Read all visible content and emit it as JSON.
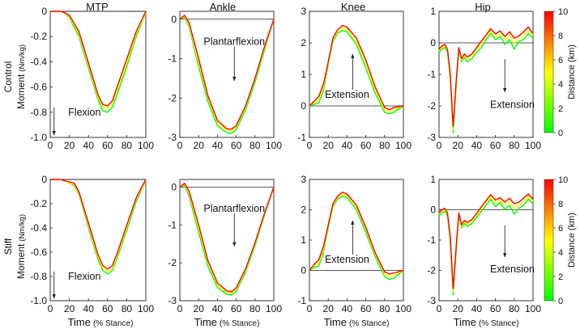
{
  "figure": {
    "column_titles": [
      "MTP",
      "Ankle",
      "Knee",
      "Hip"
    ],
    "row_labels": [
      {
        "condition": "Control",
        "quantity": "Moment",
        "unit": "(Nm/kg)"
      },
      {
        "condition": "Stiff",
        "quantity": "Moment",
        "unit": "(Nm/kg)"
      }
    ],
    "x_axis_label": {
      "main": "Time",
      "unit": "(% Stance)"
    },
    "annotations": {
      "mtp": "Flexion",
      "ankle": "Plantarflexion",
      "knee": "Extension",
      "hip": "Extension"
    },
    "colorbar": {
      "label": "Distance (km)",
      "ticks": [
        "10",
        "8",
        "6",
        "4",
        "2",
        "0"
      ],
      "range": [
        0,
        10
      ],
      "colors": {
        "low": "#00ff00",
        "mid": "#ffff00",
        "high": "#ff0000"
      }
    }
  },
  "chart_data": [
    {
      "type": "line",
      "row": 0,
      "col": 0,
      "joint": "MTP",
      "condition": "Control",
      "title": "MTP",
      "xlabel": "",
      "ylabel": "Control Moment (Nm/kg)",
      "xlim": [
        0,
        100
      ],
      "ylim": [
        -1.0,
        0
      ],
      "xticks": [
        "0",
        "20",
        "40",
        "60",
        "80",
        "100"
      ],
      "yticks": [
        "0",
        "-0.2",
        "-0.4",
        "-0.6",
        "-0.8",
        "-1.0"
      ],
      "annotation": "Flexion",
      "x": [
        0,
        10,
        15,
        20,
        30,
        40,
        50,
        55,
        60,
        65,
        70,
        80,
        90,
        100
      ],
      "series": [
        {
          "name": "0 km",
          "distance_km": 0,
          "values": [
            0,
            0,
            -0.01,
            -0.05,
            -0.2,
            -0.45,
            -0.7,
            -0.79,
            -0.8,
            -0.76,
            -0.66,
            -0.44,
            -0.2,
            -0.01
          ]
        },
        {
          "name": "5 km",
          "distance_km": 5,
          "values": [
            0,
            0,
            -0.01,
            -0.04,
            -0.18,
            -0.43,
            -0.68,
            -0.76,
            -0.77,
            -0.73,
            -0.63,
            -0.41,
            -0.18,
            -0.01
          ]
        },
        {
          "name": "10 km",
          "distance_km": 10,
          "values": [
            0,
            0,
            -0.01,
            -0.03,
            -0.16,
            -0.41,
            -0.66,
            -0.74,
            -0.75,
            -0.71,
            -0.6,
            -0.38,
            -0.16,
            0
          ]
        }
      ]
    },
    {
      "type": "line",
      "row": 0,
      "col": 1,
      "joint": "Ankle",
      "condition": "Control",
      "title": "Ankle",
      "xlabel": "",
      "ylabel": "",
      "xlim": [
        0,
        100
      ],
      "ylim": [
        -3,
        0.2
      ],
      "xticks": [
        "0",
        "20",
        "40",
        "60",
        "80",
        "100"
      ],
      "yticks": [
        "0",
        "-1",
        "-2",
        "-3"
      ],
      "annotation": "Plantarflexion",
      "x": [
        0,
        5,
        10,
        20,
        30,
        40,
        50,
        55,
        60,
        70,
        80,
        90,
        100
      ],
      "series": [
        {
          "name": "0 km",
          "distance_km": 0,
          "values": [
            0,
            0.05,
            -0.2,
            -1.2,
            -2.1,
            -2.7,
            -2.88,
            -2.9,
            -2.8,
            -2.3,
            -1.6,
            -0.8,
            0
          ]
        },
        {
          "name": "5 km",
          "distance_km": 5,
          "values": [
            0,
            0.07,
            -0.15,
            -1.1,
            -2.0,
            -2.62,
            -2.82,
            -2.83,
            -2.74,
            -2.24,
            -1.54,
            -0.75,
            0
          ]
        },
        {
          "name": "10 km",
          "distance_km": 10,
          "values": [
            0,
            0.1,
            -0.1,
            -1.0,
            -1.95,
            -2.57,
            -2.78,
            -2.79,
            -2.7,
            -2.2,
            -1.5,
            -0.7,
            0
          ]
        }
      ]
    },
    {
      "type": "line",
      "row": 0,
      "col": 2,
      "joint": "Knee",
      "condition": "Control",
      "title": "Knee",
      "xlabel": "",
      "ylabel": "",
      "xlim": [
        0,
        100
      ],
      "ylim": [
        -1,
        3
      ],
      "xticks": [
        "0",
        "20",
        "40",
        "60",
        "80",
        "100"
      ],
      "yticks": [
        "3",
        "2",
        "1",
        "0",
        "-1"
      ],
      "annotation": "Extension",
      "x": [
        0,
        5,
        10,
        15,
        20,
        25,
        30,
        35,
        40,
        50,
        60,
        70,
        80,
        85,
        90,
        100
      ],
      "series": [
        {
          "name": "0 km",
          "distance_km": 0,
          "values": [
            0,
            0.05,
            0.1,
            0.5,
            1.3,
            2.05,
            2.3,
            2.4,
            2.35,
            1.95,
            1.2,
            0.4,
            -0.2,
            -0.25,
            -0.2,
            0
          ]
        },
        {
          "name": "5 km",
          "distance_km": 5,
          "values": [
            0,
            0.1,
            0.2,
            0.6,
            1.35,
            2.1,
            2.35,
            2.47,
            2.45,
            2.05,
            1.35,
            0.5,
            -0.12,
            -0.18,
            -0.12,
            0
          ]
        },
        {
          "name": "10 km",
          "distance_km": 10,
          "values": [
            0,
            0.15,
            0.3,
            0.7,
            1.4,
            2.15,
            2.42,
            2.55,
            2.5,
            2.15,
            1.45,
            0.6,
            -0.05,
            -0.12,
            -0.05,
            0
          ]
        }
      ]
    },
    {
      "type": "line",
      "row": 0,
      "col": 3,
      "joint": "Hip",
      "condition": "Control",
      "title": "Hip",
      "xlabel": "",
      "ylabel": "",
      "xlim": [
        0,
        100
      ],
      "ylim": [
        -3,
        1
      ],
      "xticks": [
        "0",
        "20",
        "40",
        "60",
        "80",
        "100"
      ],
      "yticks": [
        "1",
        "0",
        "-1",
        "-2",
        "-3"
      ],
      "annotation": "Extension",
      "x": [
        0,
        3,
        6,
        9,
        12,
        15,
        18,
        21,
        24,
        27,
        30,
        35,
        40,
        45,
        50,
        55,
        60,
        65,
        70,
        75,
        80,
        85,
        90,
        95,
        100
      ],
      "series": [
        {
          "name": "0 km",
          "distance_km": 0,
          "values": [
            -0.3,
            -0.2,
            -0.15,
            -0.3,
            -1.2,
            -2.85,
            -1.5,
            -0.25,
            -0.6,
            -0.45,
            -0.6,
            -0.5,
            -0.3,
            -0.15,
            0.1,
            0.3,
            0.1,
            0.2,
            -0.05,
            0.1,
            -0.2,
            0.05,
            0.1,
            0.3,
            0.15
          ]
        },
        {
          "name": "5 km",
          "distance_km": 5,
          "values": [
            -0.25,
            -0.15,
            -0.1,
            -0.25,
            -1.1,
            -2.75,
            -1.4,
            -0.2,
            -0.55,
            -0.4,
            -0.5,
            -0.4,
            -0.2,
            -0.05,
            0.2,
            0.38,
            0.2,
            0.3,
            0.1,
            0.25,
            -0.02,
            0.15,
            0.25,
            0.4,
            0.25
          ]
        },
        {
          "name": "10 km",
          "distance_km": 10,
          "values": [
            -0.2,
            -0.1,
            -0.05,
            -0.2,
            -1.0,
            -2.65,
            -1.3,
            -0.15,
            -0.5,
            -0.35,
            -0.45,
            -0.35,
            -0.15,
            0.05,
            0.25,
            0.45,
            0.28,
            0.38,
            0.2,
            0.35,
            0.15,
            0.22,
            0.35,
            0.5,
            0.3
          ]
        }
      ]
    },
    {
      "type": "line",
      "row": 1,
      "col": 0,
      "joint": "MTP",
      "condition": "Stiff",
      "title": "",
      "xlabel": "",
      "ylabel": "Stiff Moment (Nm/kg)",
      "xlim": [
        0,
        100
      ],
      "ylim": [
        -1.0,
        0
      ],
      "xticks": [
        "0",
        "20",
        "40",
        "60",
        "80",
        "100"
      ],
      "yticks": [
        "0",
        "-0.2",
        "-0.4",
        "-0.6",
        "-0.8",
        "-1.0"
      ],
      "annotation": "Flexion",
      "x": [
        0,
        10,
        15,
        20,
        25,
        30,
        40,
        50,
        55,
        60,
        65,
        70,
        80,
        90,
        100
      ],
      "series": [
        {
          "name": "0 km",
          "distance_km": 0,
          "values": [
            0,
            0,
            -0.01,
            -0.03,
            -0.05,
            -0.12,
            -0.4,
            -0.66,
            -0.75,
            -0.78,
            -0.75,
            -0.65,
            -0.42,
            -0.18,
            -0.01
          ]
        },
        {
          "name": "5 km",
          "distance_km": 5,
          "values": [
            0,
            0,
            -0.01,
            -0.03,
            -0.04,
            -0.11,
            -0.38,
            -0.64,
            -0.73,
            -0.76,
            -0.73,
            -0.63,
            -0.4,
            -0.16,
            -0.01
          ]
        },
        {
          "name": "10 km",
          "distance_km": 10,
          "values": [
            0,
            0,
            -0.01,
            -0.02,
            -0.03,
            -0.1,
            -0.36,
            -0.62,
            -0.71,
            -0.74,
            -0.71,
            -0.61,
            -0.38,
            -0.15,
            0
          ]
        }
      ]
    },
    {
      "type": "line",
      "row": 1,
      "col": 1,
      "joint": "Ankle",
      "condition": "Stiff",
      "title": "",
      "xlabel": "Time (% Stance)",
      "ylabel": "",
      "xlim": [
        0,
        100
      ],
      "ylim": [
        -3,
        0.2
      ],
      "xticks": [
        "0",
        "20",
        "40",
        "60",
        "80",
        "100"
      ],
      "yticks": [
        "0",
        "-1",
        "-2",
        "-3"
      ],
      "annotation": "Plantarflexion",
      "x": [
        0,
        5,
        10,
        20,
        30,
        40,
        50,
        55,
        60,
        70,
        80,
        90,
        100
      ],
      "series": [
        {
          "name": "0 km",
          "distance_km": 0,
          "values": [
            0,
            0.05,
            -0.25,
            -1.2,
            -2.1,
            -2.65,
            -2.83,
            -2.85,
            -2.75,
            -2.25,
            -1.55,
            -0.75,
            0
          ]
        },
        {
          "name": "5 km",
          "distance_km": 5,
          "values": [
            0,
            0.08,
            -0.18,
            -1.1,
            -2.0,
            -2.58,
            -2.78,
            -2.8,
            -2.7,
            -2.2,
            -1.5,
            -0.72,
            0
          ]
        },
        {
          "name": "10 km",
          "distance_km": 10,
          "values": [
            0,
            0.1,
            -0.12,
            -1.0,
            -1.95,
            -2.53,
            -2.74,
            -2.76,
            -2.66,
            -2.16,
            -1.47,
            -0.7,
            0
          ]
        }
      ]
    },
    {
      "type": "line",
      "row": 1,
      "col": 2,
      "joint": "Knee",
      "condition": "Stiff",
      "title": "",
      "xlabel": "Time (% Stance)",
      "ylabel": "",
      "xlim": [
        0,
        100
      ],
      "ylim": [
        -1,
        3
      ],
      "xticks": [
        "0",
        "20",
        "40",
        "60",
        "80",
        "100"
      ],
      "yticks": [
        "3",
        "2",
        "1",
        "0",
        "-1"
      ],
      "annotation": "Extension",
      "x": [
        0,
        5,
        10,
        15,
        20,
        25,
        30,
        35,
        40,
        50,
        60,
        70,
        80,
        85,
        90,
        100
      ],
      "series": [
        {
          "name": "0 km",
          "distance_km": 0,
          "values": [
            0,
            0.1,
            0.15,
            0.6,
            1.4,
            2.1,
            2.35,
            2.45,
            2.4,
            2.0,
            1.25,
            0.45,
            -0.2,
            -0.3,
            -0.25,
            0
          ]
        },
        {
          "name": "5 km",
          "distance_km": 5,
          "values": [
            0,
            0.15,
            0.25,
            0.7,
            1.45,
            2.15,
            2.4,
            2.5,
            2.48,
            2.08,
            1.35,
            0.52,
            -0.12,
            -0.2,
            -0.15,
            0
          ]
        },
        {
          "name": "10 km",
          "distance_km": 10,
          "values": [
            0,
            0.2,
            0.35,
            0.8,
            1.5,
            2.2,
            2.45,
            2.58,
            2.52,
            2.15,
            1.42,
            0.58,
            -0.05,
            -0.12,
            -0.08,
            0
          ]
        }
      ]
    },
    {
      "type": "line",
      "row": 1,
      "col": 3,
      "joint": "Hip",
      "condition": "Stiff",
      "title": "",
      "xlabel": "Time (% Stance)",
      "ylabel": "",
      "xlim": [
        0,
        100
      ],
      "ylim": [
        -3,
        1
      ],
      "xticks": [
        "0",
        "20",
        "40",
        "60",
        "80",
        "100"
      ],
      "yticks": [
        "1",
        "0",
        "-1",
        "-2",
        "-3"
      ],
      "annotation": "Extension",
      "x": [
        0,
        3,
        6,
        9,
        12,
        15,
        18,
        21,
        24,
        27,
        30,
        35,
        40,
        45,
        50,
        55,
        60,
        65,
        70,
        75,
        80,
        85,
        90,
        95,
        100
      ],
      "series": [
        {
          "name": "0 km",
          "distance_km": 0,
          "values": [
            -0.2,
            -0.1,
            -0.05,
            -0.2,
            -1.1,
            -2.8,
            -1.5,
            -0.2,
            -0.6,
            -0.45,
            -0.55,
            -0.45,
            -0.25,
            -0.05,
            0.15,
            0.35,
            0.1,
            0.25,
            0.0,
            0.15,
            -0.15,
            0.05,
            0.15,
            0.35,
            0.2
          ]
        },
        {
          "name": "5 km",
          "distance_km": 5,
          "values": [
            -0.15,
            -0.05,
            0.0,
            -0.15,
            -1.0,
            -2.7,
            -1.4,
            -0.15,
            -0.55,
            -0.4,
            -0.48,
            -0.38,
            -0.18,
            0.05,
            0.25,
            0.42,
            0.22,
            0.33,
            0.15,
            0.28,
            0.05,
            0.15,
            0.28,
            0.45,
            0.28
          ]
        },
        {
          "name": "10 km",
          "distance_km": 10,
          "values": [
            -0.1,
            0.0,
            0.05,
            -0.1,
            -0.9,
            -2.6,
            -1.3,
            -0.1,
            -0.5,
            -0.35,
            -0.42,
            -0.32,
            -0.12,
            0.1,
            0.3,
            0.5,
            0.32,
            0.4,
            0.25,
            0.38,
            0.2,
            0.25,
            0.38,
            0.52,
            0.35
          ]
        }
      ]
    }
  ]
}
